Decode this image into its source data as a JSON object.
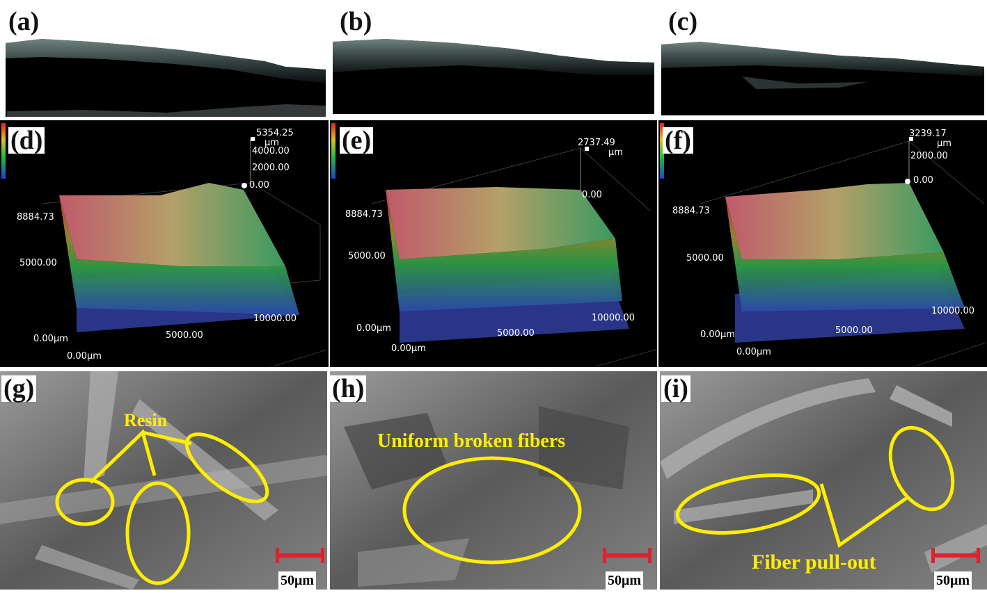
{
  "figure": {
    "rows": {
      "top": [
        "(a)",
        "(b)",
        "(c)"
      ],
      "middle": [
        "(d)",
        "(e)",
        "(f)"
      ],
      "bottom": [
        "(g)",
        "(h)",
        "(i)"
      ]
    }
  },
  "profiles": [
    {
      "label": "(d)",
      "zmax": "5354.25",
      "unit": "μm",
      "z_ticks": [
        "4000.00",
        "2000.00",
        "0.00"
      ],
      "y_top": "8884.73",
      "y_mid": "5000.00",
      "origin_y": "0.00μm",
      "origin_x": "0.00μm",
      "x_mid": "5000.00",
      "x_end": "10000.00"
    },
    {
      "label": "(e)",
      "zmax": "2737.49",
      "unit": "μm",
      "z_ticks": [
        "0.00"
      ],
      "y_top": "8884.73",
      "y_mid": "5000.00",
      "origin_y": "0.00μm",
      "origin_x": "0.00μm",
      "x_mid": "5000.00",
      "x_end": "10000.00"
    },
    {
      "label": "(f)",
      "zmax": "3239.17",
      "unit": "μm",
      "z_ticks": [
        "2000.00",
        "0.00"
      ],
      "y_top": "8884.73",
      "y_mid": "5000.00",
      "origin_y": "0.00μm",
      "origin_x": "0.00μm",
      "x_mid": "5000.00",
      "x_end": "10000.00"
    }
  ],
  "sem": [
    {
      "label": "(g)",
      "annotation": "Resin",
      "scale": "50μm"
    },
    {
      "label": "(h)",
      "annotation": "Uniform broken fibers",
      "scale": "50μm"
    },
    {
      "label": "(i)",
      "annotation": "Fiber pull-out",
      "scale": "50μm"
    }
  ],
  "colors": {
    "annotation": "#ffee00",
    "scalebar": "#e0202a",
    "background_dark": "#000000"
  }
}
